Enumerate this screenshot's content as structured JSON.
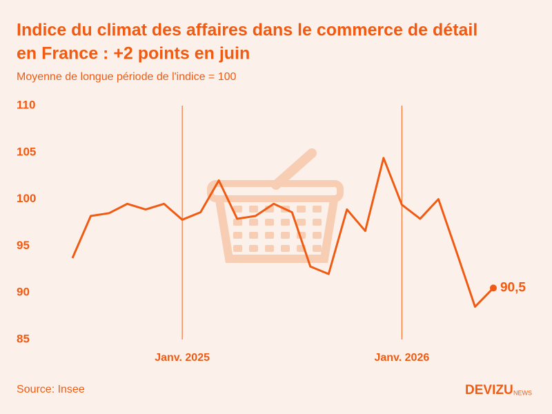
{
  "chart_data": {
    "type": "line",
    "title_lines": [
      "Indice du climat des affaires dans le commerce de détail",
      "en France : +2 points en juin"
    ],
    "subtitle": "Moyenne de longue période de l'indice = 100",
    "categories": [
      null,
      null,
      null,
      null,
      null,
      null,
      "Janv. 2025",
      null,
      null,
      null,
      null,
      null,
      null,
      null,
      null,
      null,
      null,
      null,
      "Janv. 2026",
      null,
      null,
      null,
      null,
      null
    ],
    "values": [
      93.7,
      98.2,
      98.5,
      99.5,
      98.9,
      99.5,
      97.8,
      98.6,
      102.0,
      97.9,
      98.2,
      99.5,
      98.6,
      92.8,
      92.0,
      98.9,
      96.6,
      104.4,
      99.4,
      97.9,
      100.0,
      94.3,
      88.5,
      90.5
    ],
    "value_labels": [
      null,
      null,
      null,
      null,
      null,
      null,
      null,
      null,
      null,
      null,
      null,
      null,
      null,
      null,
      null,
      null,
      null,
      null,
      null,
      null,
      null,
      null,
      null,
      "90,5"
    ],
    "color": "#f05a12",
    "ylim": [
      85,
      110
    ],
    "yticks": [
      85,
      90,
      95,
      100,
      105,
      110
    ],
    "source": "Source: Insee",
    "brand": "DEVIZU",
    "brand_suffix": "NEWS"
  }
}
